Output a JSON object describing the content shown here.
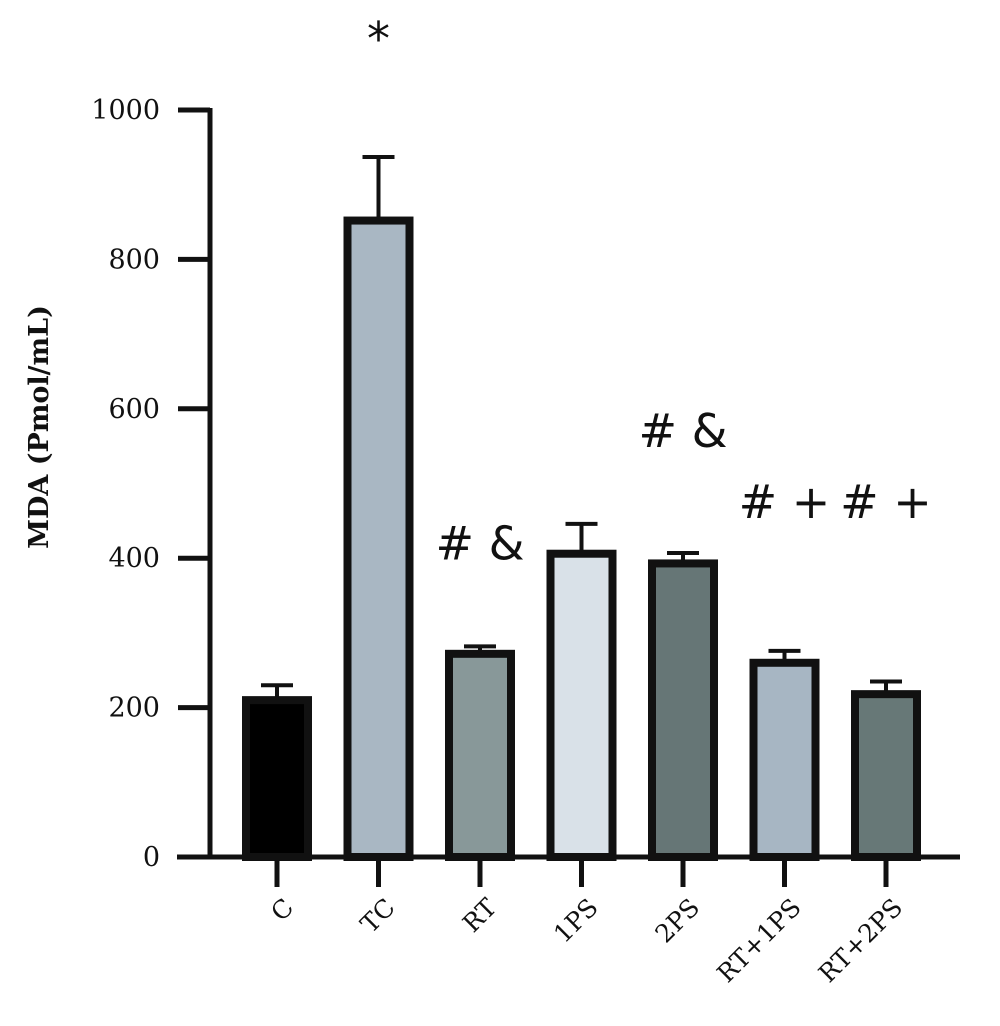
{
  "chart_data": {
    "type": "bar",
    "title": "",
    "xlabel": "",
    "ylabel": "MDA (Pmol/mL)",
    "ylim": [
      0,
      1000
    ],
    "yticks": [
      0,
      200,
      400,
      600,
      800,
      1000
    ],
    "grid": false,
    "categories": [
      "C",
      "TC",
      "RT",
      "1PS",
      "2PS",
      "RT+1PS",
      "RT+2PS"
    ],
    "values": [
      210,
      852,
      272,
      406,
      393,
      260,
      218
    ],
    "errors": [
      20,
      85,
      10,
      40,
      14,
      16,
      17
    ],
    "colors": [
      "#000000",
      "#a9b7c3",
      "#889899",
      "#d9e1e8",
      "#667676",
      "#a7b6c3",
      "#677877"
    ],
    "annotations": [
      {
        "text": "*",
        "category": "TC",
        "value": 1095
      },
      {
        "text": "# &",
        "category": "RT",
        "value": 420
      },
      {
        "text": "# &",
        "category": "2PS",
        "value": 570
      },
      {
        "text": "# +",
        "category": "RT+1PS",
        "value": 475
      },
      {
        "text": "# +",
        "category": "RT+2PS",
        "value": 475
      }
    ]
  }
}
